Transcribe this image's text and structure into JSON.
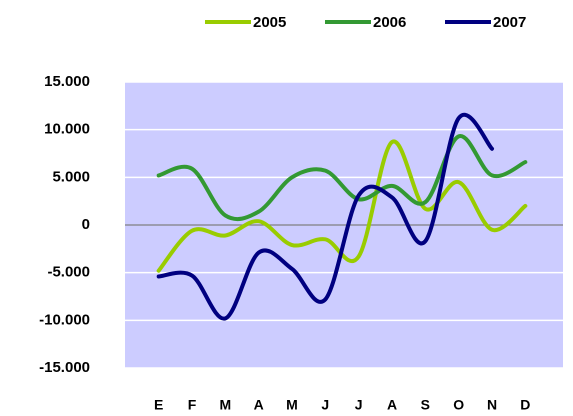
{
  "chart_data": {
    "type": "line",
    "categories": [
      "E",
      "F",
      "M",
      "A",
      "M",
      "J",
      "J",
      "A",
      "S",
      "O",
      "N",
      "D"
    ],
    "series": [
      {
        "name": "2005",
        "color": "#99cc00",
        "values": [
          -4800,
          -600,
          -1100,
          400,
          -2100,
          -1500,
          -3300,
          8700,
          1700,
          4500,
          -500,
          2000
        ]
      },
      {
        "name": "2006",
        "color": "#339933",
        "values": [
          5200,
          5900,
          1000,
          1400,
          5000,
          5700,
          2700,
          4100,
          2400,
          9300,
          5200,
          6600
        ]
      },
      {
        "name": "2007",
        "color": "#000080",
        "values": [
          -5400,
          -5300,
          -9800,
          -2900,
          -4600,
          -7800,
          3100,
          2900,
          -1700,
          11200,
          8000,
          null
        ]
      }
    ],
    "ylim": [
      -15000,
      15000
    ],
    "yticks": [
      {
        "value": -15000,
        "label": "-15.000"
      },
      {
        "value": -10000,
        "label": "-10.000"
      },
      {
        "value": -5000,
        "label": "-5.000"
      },
      0,
      {
        "value": 5000,
        "label": "5.000"
      },
      {
        "value": 10000,
        "label": "10.000"
      },
      {
        "value": 15000,
        "label": "15.000"
      }
    ],
    "grid": true,
    "legend": "top",
    "smooth": true
  }
}
